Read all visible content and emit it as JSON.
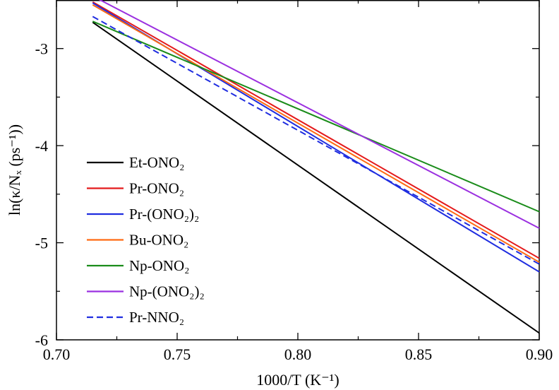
{
  "chart_data": {
    "type": "line",
    "title": "",
    "xlabel": "1000/T (K⁻¹)",
    "ylabel": "ln(κ/Nₓ (ps⁻¹))",
    "xlim": [
      0.7,
      0.9
    ],
    "ylim": [
      -6,
      -2.5
    ],
    "x_ticks": [
      0.7,
      0.75,
      0.8,
      0.85,
      0.9
    ],
    "x_tick_labels": [
      "0.70",
      "0.75",
      "0.80",
      "0.85",
      "0.90"
    ],
    "y_ticks": [
      -6,
      -5,
      -4,
      -3
    ],
    "y_tick_labels": [
      "-6",
      "-5",
      "-4",
      "-3"
    ],
    "legend_position": "bottom-left",
    "series": [
      {
        "name": "Et-ONO₂",
        "color": "#000000",
        "dash": "solid",
        "x": [
          0.715,
          0.9
        ],
        "values": [
          -2.73,
          -5.93
        ]
      },
      {
        "name": "Pr-ONO₂",
        "color": "#e41a1c",
        "dash": "solid",
        "x": [
          0.715,
          0.9
        ],
        "values": [
          -2.52,
          -5.16
        ]
      },
      {
        "name": "Pr-(ONO₂)₂",
        "color": "#1f2de0",
        "dash": "solid",
        "x": [
          0.715,
          0.9
        ],
        "values": [
          -2.53,
          -5.3
        ]
      },
      {
        "name": "Bu-ONO₂",
        "color": "#ff6a13",
        "dash": "solid",
        "x": [
          0.715,
          0.9
        ],
        "values": [
          -2.55,
          -5.2
        ]
      },
      {
        "name": "Np-ONO₂",
        "color": "#1a8c1a",
        "dash": "solid",
        "x": [
          0.715,
          0.9
        ],
        "values": [
          -2.72,
          -4.68
        ]
      },
      {
        "name": "Np-(ONO₂)₂",
        "color": "#9b30e0",
        "dash": "solid",
        "x": [
          0.715,
          0.9
        ],
        "values": [
          -2.46,
          -4.85
        ]
      },
      {
        "name": "Pr-NNO₂",
        "color": "#1f2de0",
        "dash": "dashed",
        "x": [
          0.715,
          0.9
        ],
        "values": [
          -2.67,
          -5.22
        ]
      }
    ]
  }
}
